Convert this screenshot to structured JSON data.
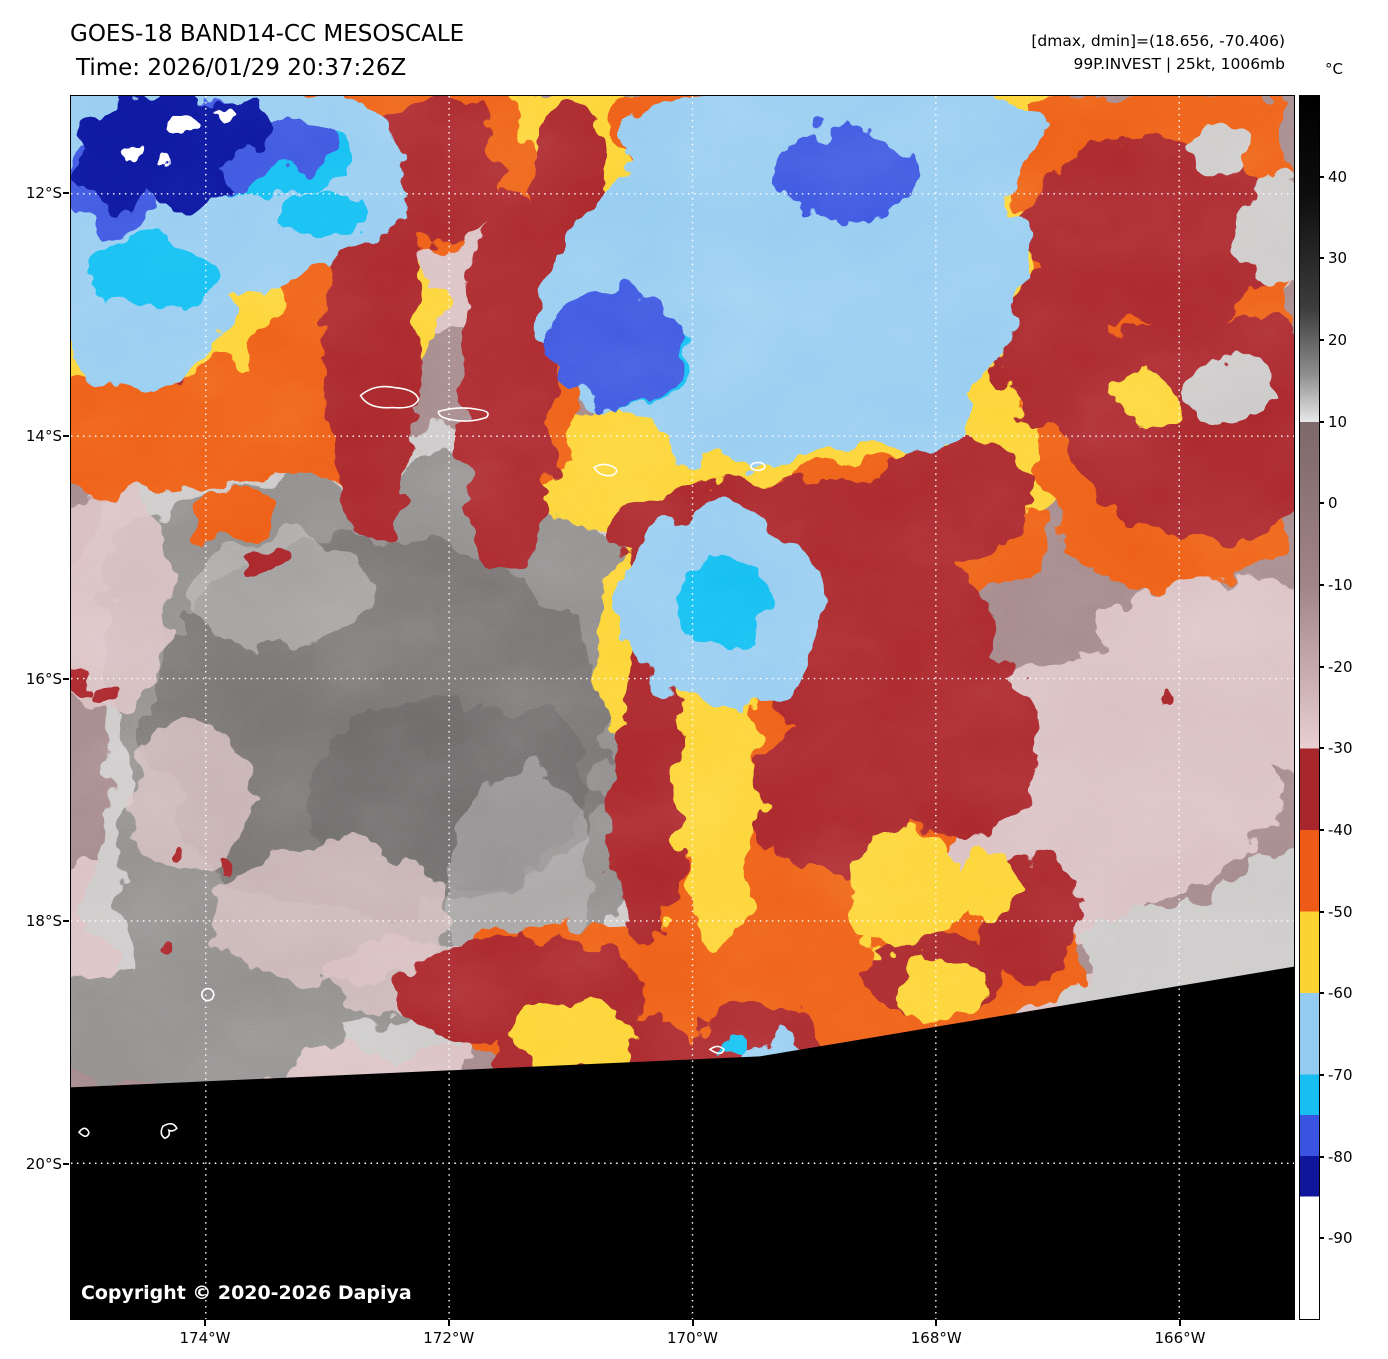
{
  "header": {
    "title": "GOES-18 BAND14-CC MESOSCALE",
    "time_line": "Time: 2026/01/29 20:37:26Z"
  },
  "readouts": {
    "dminmax": "[dmax, dmin]=(18.656, -70.406)",
    "storm": "99P.INVEST | 25kt, 1006mb"
  },
  "map": {
    "copyright": "Copyright © 2020-2026 Dapiya"
  },
  "axes": {
    "lat_tick_labels": [
      "12°S",
      "14°S",
      "16°S",
      "18°S",
      "20°S"
    ],
    "lon_tick_labels": [
      "174°W",
      "172°W",
      "170°W",
      "168°W",
      "166°W"
    ]
  },
  "colorbar": {
    "unit": "°C",
    "tick_values": [
      40,
      30,
      20,
      10,
      0,
      -10,
      -20,
      -30,
      -40,
      -50,
      -60,
      -70,
      -80,
      -90
    ],
    "scale_max": 50,
    "scale_min": -100,
    "stops": [
      {
        "v": 50,
        "c": "#000000"
      },
      {
        "v": 38,
        "c": "#0d0d0d"
      },
      {
        "v": 24,
        "c": "#3c3c3c"
      },
      {
        "v": 16,
        "c": "#8c8c8c"
      },
      {
        "v": 10,
        "c": "#e8e8e8"
      },
      {
        "v": 10,
        "c": "#7d686a"
      },
      {
        "v": -10,
        "c": "#a18486"
      },
      {
        "v": -30,
        "c": "#e9cfd0"
      },
      {
        "v": -30,
        "c": "#a6262c"
      },
      {
        "v": -40,
        "c": "#a6262c"
      },
      {
        "v": -40,
        "c": "#ee5a17"
      },
      {
        "v": -50,
        "c": "#ee5a17"
      },
      {
        "v": -50,
        "c": "#fdd334"
      },
      {
        "v": -60,
        "c": "#fdd334"
      },
      {
        "v": -60,
        "c": "#93cbf1"
      },
      {
        "v": -70,
        "c": "#93cbf1"
      },
      {
        "v": -70,
        "c": "#18bdf2"
      },
      {
        "v": -75,
        "c": "#18bdf2"
      },
      {
        "v": -75,
        "c": "#3a53e0"
      },
      {
        "v": -80,
        "c": "#3a53e0"
      },
      {
        "v": -80,
        "c": "#10169b"
      },
      {
        "v": -85,
        "c": "#10169b"
      },
      {
        "v": -85,
        "c": "#ffffff"
      },
      {
        "v": -100,
        "c": "#ffffff"
      }
    ]
  },
  "palette": {
    "taupe": "#a18486",
    "pink": "#d9bfc1",
    "gray": "#8e8a8a",
    "grayDark": "#635f5f",
    "grayLight": "#cbc8c8",
    "red": "#a6262c",
    "orange": "#ee5a17",
    "gold": "#fdd334",
    "lightBlue": "#93cbf1",
    "cyan": "#18bdf2",
    "royal": "#3a53e0",
    "navy": "#10169b",
    "white": "#ffffff",
    "space": "#000000",
    "grid": "#ffffff"
  }
}
